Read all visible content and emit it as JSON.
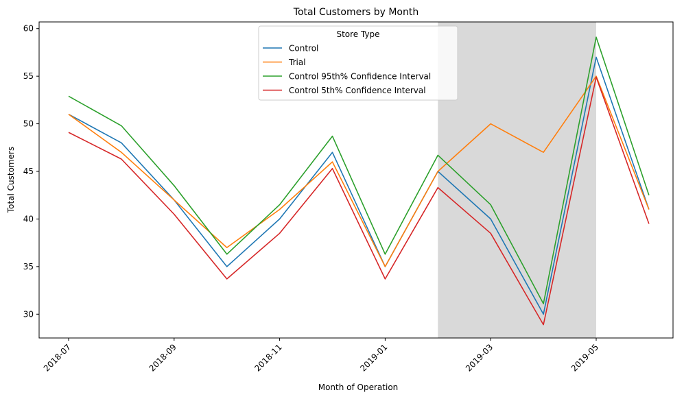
{
  "chart_data": {
    "type": "line",
    "title": "Total Customers by Month",
    "xlabel": "Month of Operation",
    "ylabel": "Total Customers",
    "x": [
      "2018-07",
      "2018-08",
      "2018-09",
      "2018-10",
      "2018-11",
      "2018-12",
      "2019-01",
      "2019-02",
      "2019-03",
      "2019-04",
      "2019-05",
      "2019-06"
    ],
    "x_tick_labels": [
      "2018-07",
      "2018-09",
      "2018-11",
      "2019-01",
      "2019-03",
      "2019-05"
    ],
    "ylim": [
      27.5,
      60.7
    ],
    "y_ticks": [
      30,
      35,
      40,
      45,
      50,
      55,
      60
    ],
    "grid": false,
    "legend": {
      "title": "Store Type",
      "placement": "top-center"
    },
    "shaded_period": [
      "2019-02",
      "2019-05"
    ],
    "shade_color": "#d9d9d9",
    "series": [
      {
        "name": "Control",
        "color": "#1f77b4",
        "values": [
          51,
          48,
          42,
          35,
          40,
          47,
          35,
          45,
          40,
          30,
          57,
          41
        ]
      },
      {
        "name": "Trial",
        "color": "#ff7f0e",
        "values": [
          51,
          47,
          42,
          37,
          41,
          46,
          35,
          45,
          50,
          47,
          55,
          41
        ]
      },
      {
        "name": "Control 95th% Confidence Interval",
        "color": "#2ca02c",
        "values": [
          52.9,
          49.8,
          43.5,
          36.3,
          41.5,
          48.7,
          36.3,
          46.7,
          41.5,
          31.1,
          59.1,
          42.5
        ]
      },
      {
        "name": "Control 5th% Confidence Interval",
        "color": "#d62728",
        "values": [
          49.1,
          46.3,
          40.5,
          33.7,
          38.5,
          45.3,
          33.7,
          43.3,
          38.5,
          28.9,
          54.9,
          39.5
        ]
      }
    ]
  }
}
